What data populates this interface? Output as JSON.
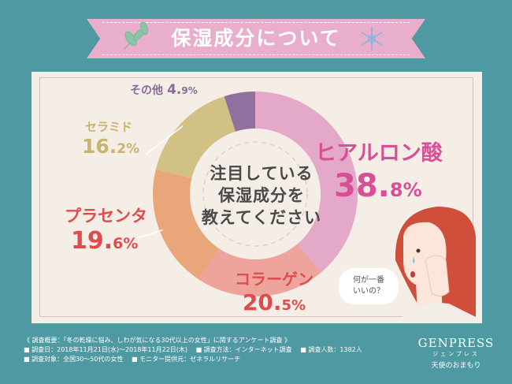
{
  "title": "保湿成分について",
  "center_lines": [
    "注目している",
    "保湿成分を",
    "教えてください"
  ],
  "speech": [
    "何が一番",
    "いいの？"
  ],
  "chart_data": {
    "type": "pie",
    "categories": [
      "ヒアルロン酸",
      "コラーゲン",
      "プラセンタ",
      "セラミド",
      "その他"
    ],
    "values": [
      38.8,
      20.5,
      19.6,
      16.2,
      4.9
    ],
    "value_int": [
      "38.",
      "20.",
      "19.",
      "16.",
      "4."
    ],
    "value_dec": [
      "8",
      "5",
      "6",
      "2",
      "9"
    ],
    "unit": "%",
    "colors": [
      "#e4a9c9",
      "#eea39d",
      "#e9a67a",
      "#d2c185",
      "#91709f"
    ],
    "label_colors": [
      "#d74f94",
      "#df4c4c",
      "#df4c4c",
      "#c9b36d",
      "#8a6a99"
    ],
    "donut": true,
    "legend": "none"
  },
  "footer": {
    "survey": "《 調査概要：「冬の乾燥に悩み、しわが気になる30代以上の女性」に関するアンケート調査 》",
    "period": "■ 調査日：2018年11月21日(水)〜2018年11月22日(木)",
    "method": "■ 調査方法：インターネット調査",
    "count": "■ 調査人数：1382人",
    "target": "■ 調査対象：全国30〜50代の女性",
    "provider": "■ モニター提供元：ゼネラルリサーチ"
  },
  "brand": {
    "name": "GENPRESS",
    "kana": "ジェンプレス",
    "tagline": "天使のおまもり"
  }
}
